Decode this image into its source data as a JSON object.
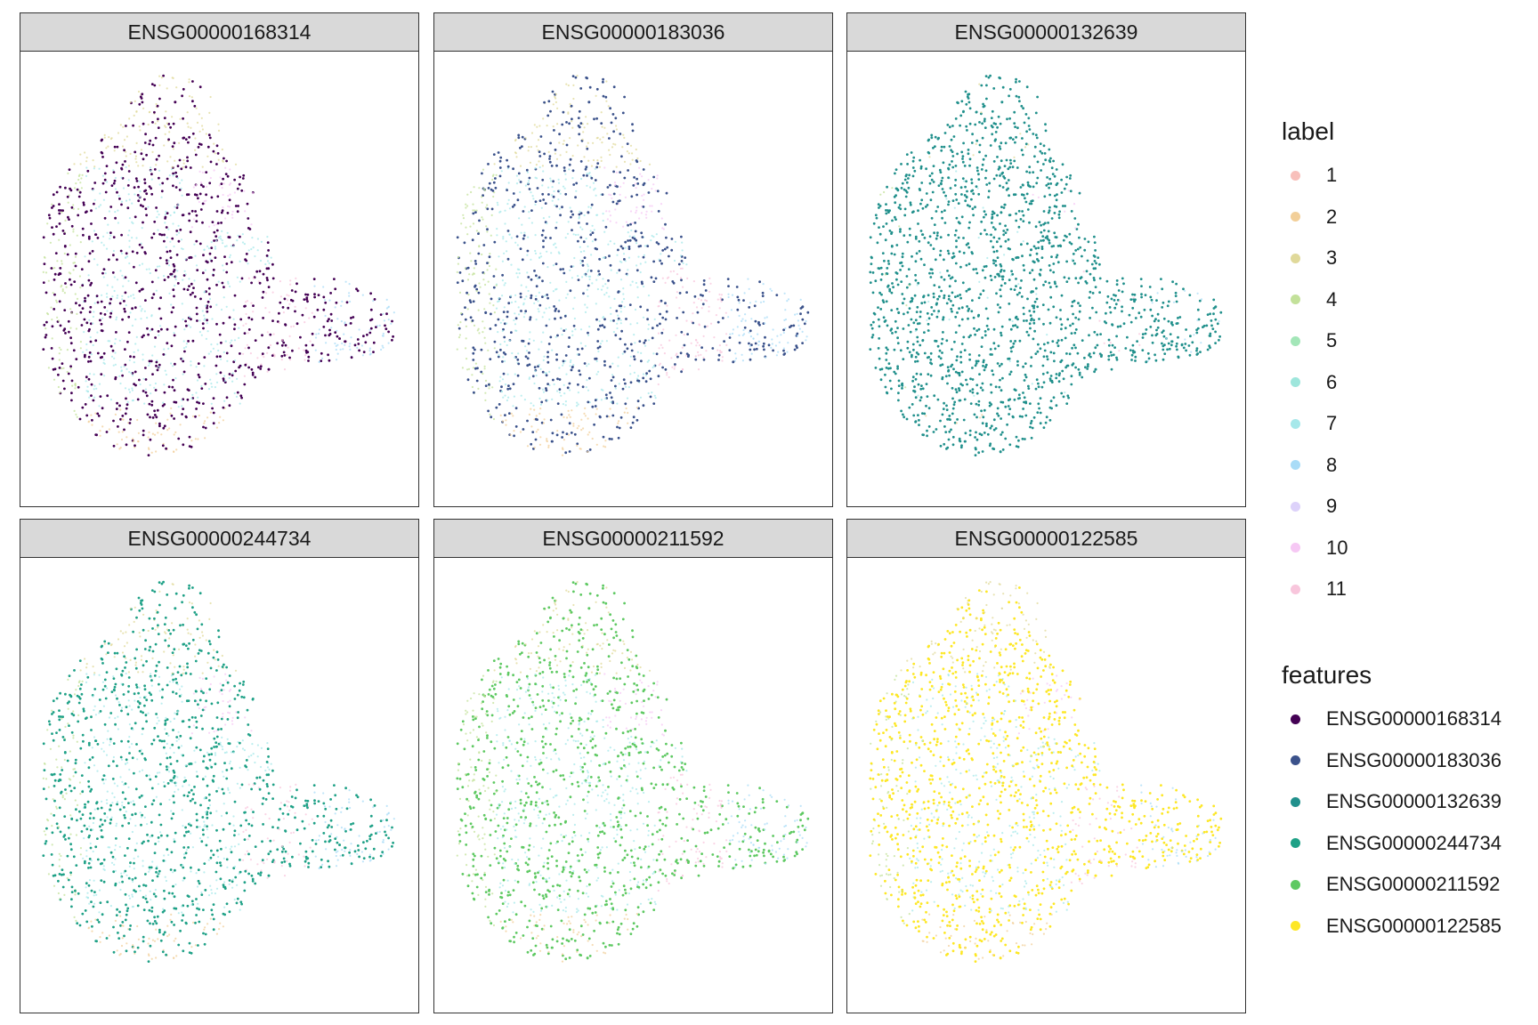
{
  "chart_data": {
    "type": "scatter",
    "facets": [
      "ENSG00000168314",
      "ENSG00000183036",
      "ENSG00000132639",
      "ENSG00000244734",
      "ENSG00000211592",
      "ENSG00000122585"
    ],
    "label_legend": {
      "title": "label",
      "entries": [
        "1",
        "2",
        "3",
        "4",
        "5",
        "6",
        "7",
        "8",
        "9",
        "10",
        "11"
      ],
      "colors": [
        "#f8c0bb",
        "#f2cf99",
        "#e0d99a",
        "#c3e19a",
        "#a3e6b8",
        "#9ee6dc",
        "#a6e8ea",
        "#a9dcf7",
        "#ddd2fa",
        "#f6c8f4",
        "#f8c6dc"
      ]
    },
    "features_legend": {
      "title": "features",
      "entries": [
        "ENSG00000168314",
        "ENSG00000183036",
        "ENSG00000132639",
        "ENSG00000244734",
        "ENSG00000211592",
        "ENSG00000122585"
      ],
      "colors": [
        "#440154",
        "#3b528b",
        "#21908c",
        "#1fa187",
        "#5ec962",
        "#fde725"
      ]
    },
    "grid": false,
    "axes": "none",
    "legend_position": "right"
  }
}
